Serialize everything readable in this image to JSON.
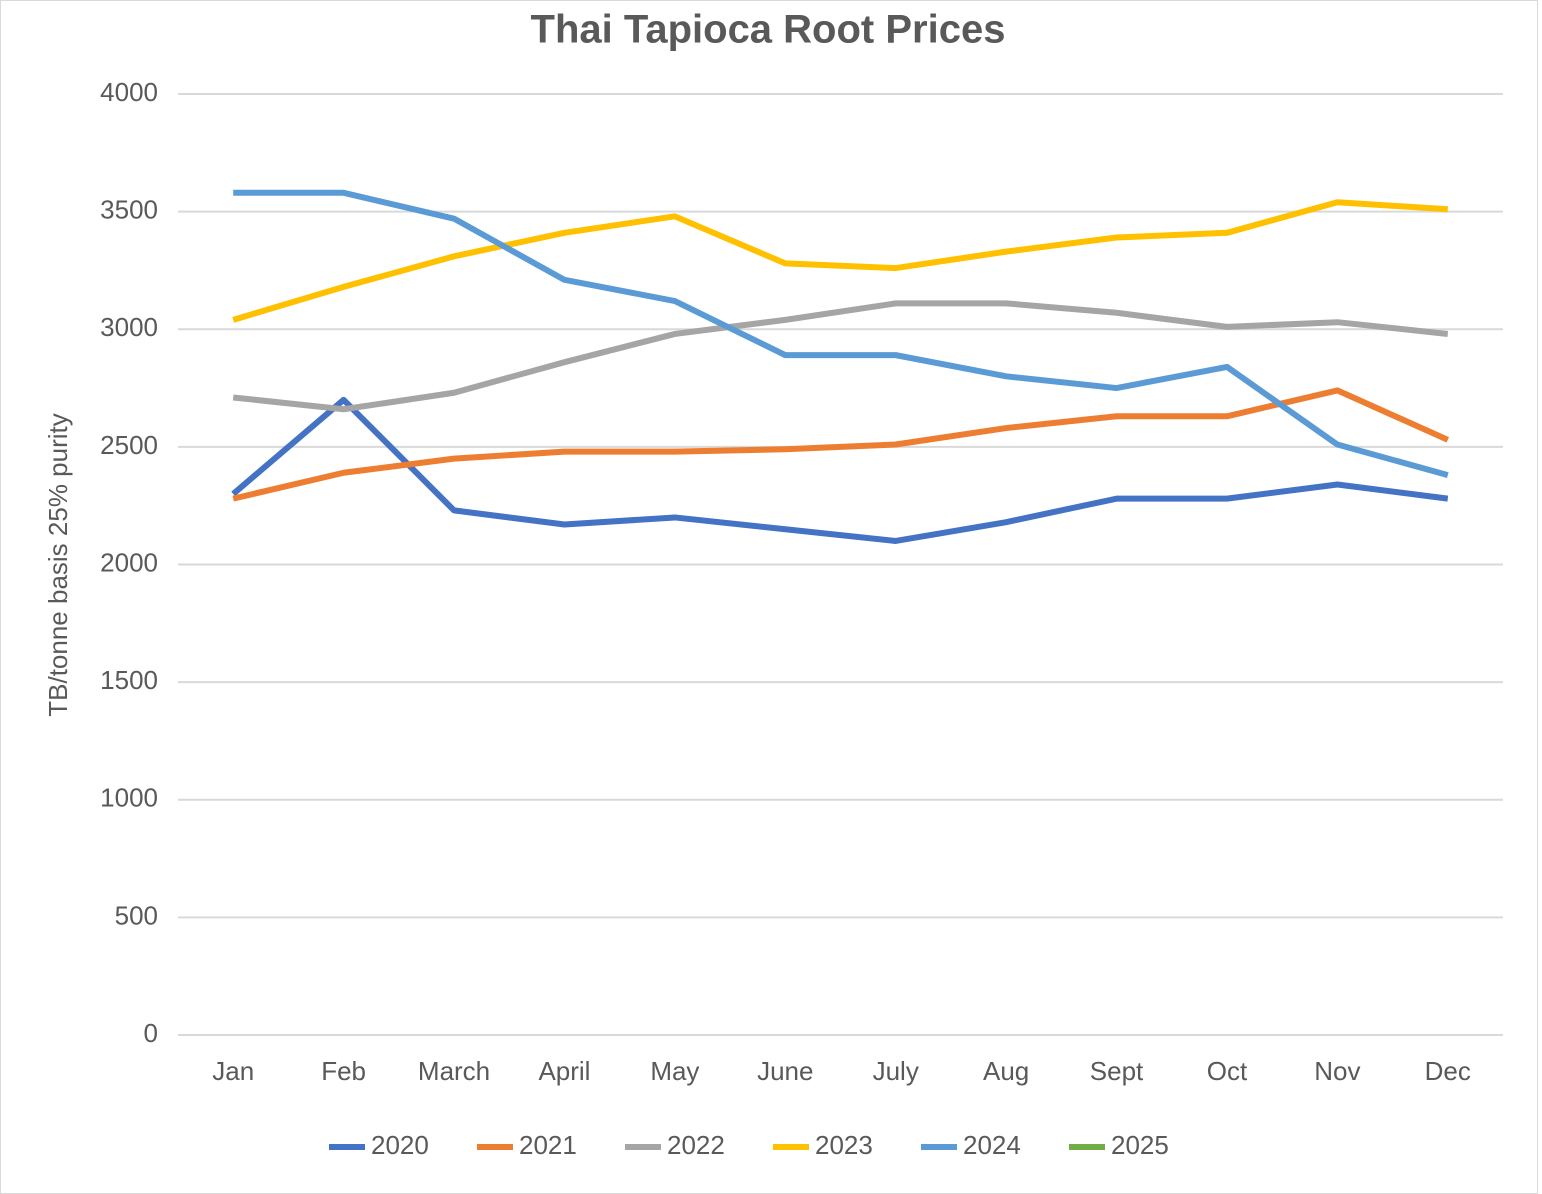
{
  "chart_data": {
    "type": "line",
    "title": "Thai Tapioca Root Prices",
    "y_label": "TB/tonne basis 25% purity",
    "categories": [
      "Jan",
      "Feb",
      "March",
      "April",
      "May",
      "June",
      "July",
      "Aug",
      "Sept",
      "Oct",
      "Nov",
      "Dec"
    ],
    "series": [
      {
        "name": "2020",
        "color": "#4472c4",
        "values": [
          2300,
          2700,
          2230,
          2170,
          2200,
          2150,
          2100,
          2180,
          2280,
          2280,
          2340,
          2280
        ]
      },
      {
        "name": "2021",
        "color": "#ed7d31",
        "values": [
          2280,
          2390,
          2450,
          2480,
          2480,
          2490,
          2510,
          2580,
          2630,
          2630,
          2740,
          2530
        ]
      },
      {
        "name": "2022",
        "color": "#a5a5a5",
        "values": [
          2710,
          2660,
          2730,
          2860,
          2980,
          3040,
          3110,
          3110,
          3070,
          3010,
          3030,
          2980
        ]
      },
      {
        "name": "2023",
        "color": "#ffc000",
        "values": [
          3040,
          3180,
          3310,
          3410,
          3480,
          3280,
          3260,
          3330,
          3390,
          3410,
          3540,
          3510
        ]
      },
      {
        "name": "2024",
        "color": "#5b9bd5",
        "values": [
          3580,
          3580,
          3470,
          3210,
          3120,
          2890,
          2890,
          2800,
          2750,
          2840,
          2510,
          2380
        ]
      },
      {
        "name": "2025",
        "color": "#70ad47",
        "values": [
          null,
          null,
          null,
          null,
          null,
          null,
          null,
          null,
          null,
          null,
          null,
          null
        ]
      }
    ],
    "ylim": [
      0,
      4000
    ],
    "yticks": [
      0,
      500,
      1000,
      1500,
      2000,
      2500,
      3000,
      3500,
      4000
    ],
    "grid": true,
    "legend": "bottom"
  }
}
